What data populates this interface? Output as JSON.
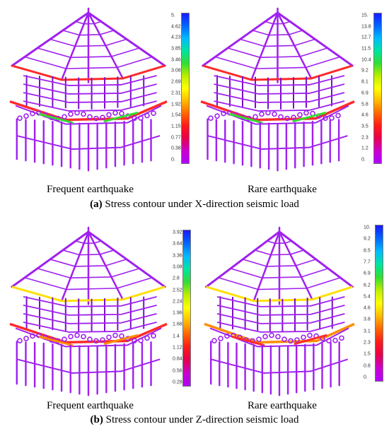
{
  "colorbar_colors": [
    "#1a1aff",
    "#0066ff",
    "#00bbff",
    "#00e5a0",
    "#33dd33",
    "#bbee00",
    "#ffff00",
    "#ffbb00",
    "#ff6600",
    "#ff1a1a",
    "#e6004c",
    "#cc00cc",
    "#b000ff"
  ],
  "model_colors": {
    "frame": "#a020f0",
    "frame_dark": "#7a10c8",
    "hot": "#ff2a2a",
    "warm": "#ff8c00",
    "yellow": "#ffe000",
    "green": "#33dd33"
  },
  "panels": [
    {
      "label": "Frequent earthquake",
      "ticks": [
        "5.",
        "4.62",
        "4.23",
        "3.85",
        "3.46",
        "3.08",
        "2.69",
        "2.31",
        "1.92",
        "1.54",
        "1.15",
        "0.77",
        "0.38",
        "0."
      ]
    },
    {
      "label": "Rare earthquake",
      "ticks": [
        "15.",
        "13.8",
        "12.7",
        "11.5",
        "10.4",
        "9.2",
        "8.1",
        "6.9",
        "5.8",
        "4.6",
        "3.5",
        "2.3",
        "1.2",
        "0."
      ]
    },
    {
      "label": "Frequent earthquake",
      "ticks": [
        "3.92",
        "3.64",
        "3.36",
        "3.08",
        "2.8",
        "2.52",
        "2.24",
        "1.96",
        "1.68",
        "1.4",
        "1.12",
        "0.84",
        "0.56",
        "0.28"
      ]
    },
    {
      "label": "Rare earthquake",
      "ticks": [
        "10.",
        "9.2",
        "8.5",
        "7.7",
        "6.9",
        "6.2",
        "5.4",
        "4.6",
        "3.8",
        "3.1",
        "2.3",
        "1.5",
        "0.8",
        "0."
      ]
    }
  ],
  "captions": [
    {
      "tag": "(a)",
      "text": " Stress contour under X-direction seismic load"
    },
    {
      "tag": "(b)",
      "text": " Stress contour under Z-direction seismic load"
    }
  ]
}
